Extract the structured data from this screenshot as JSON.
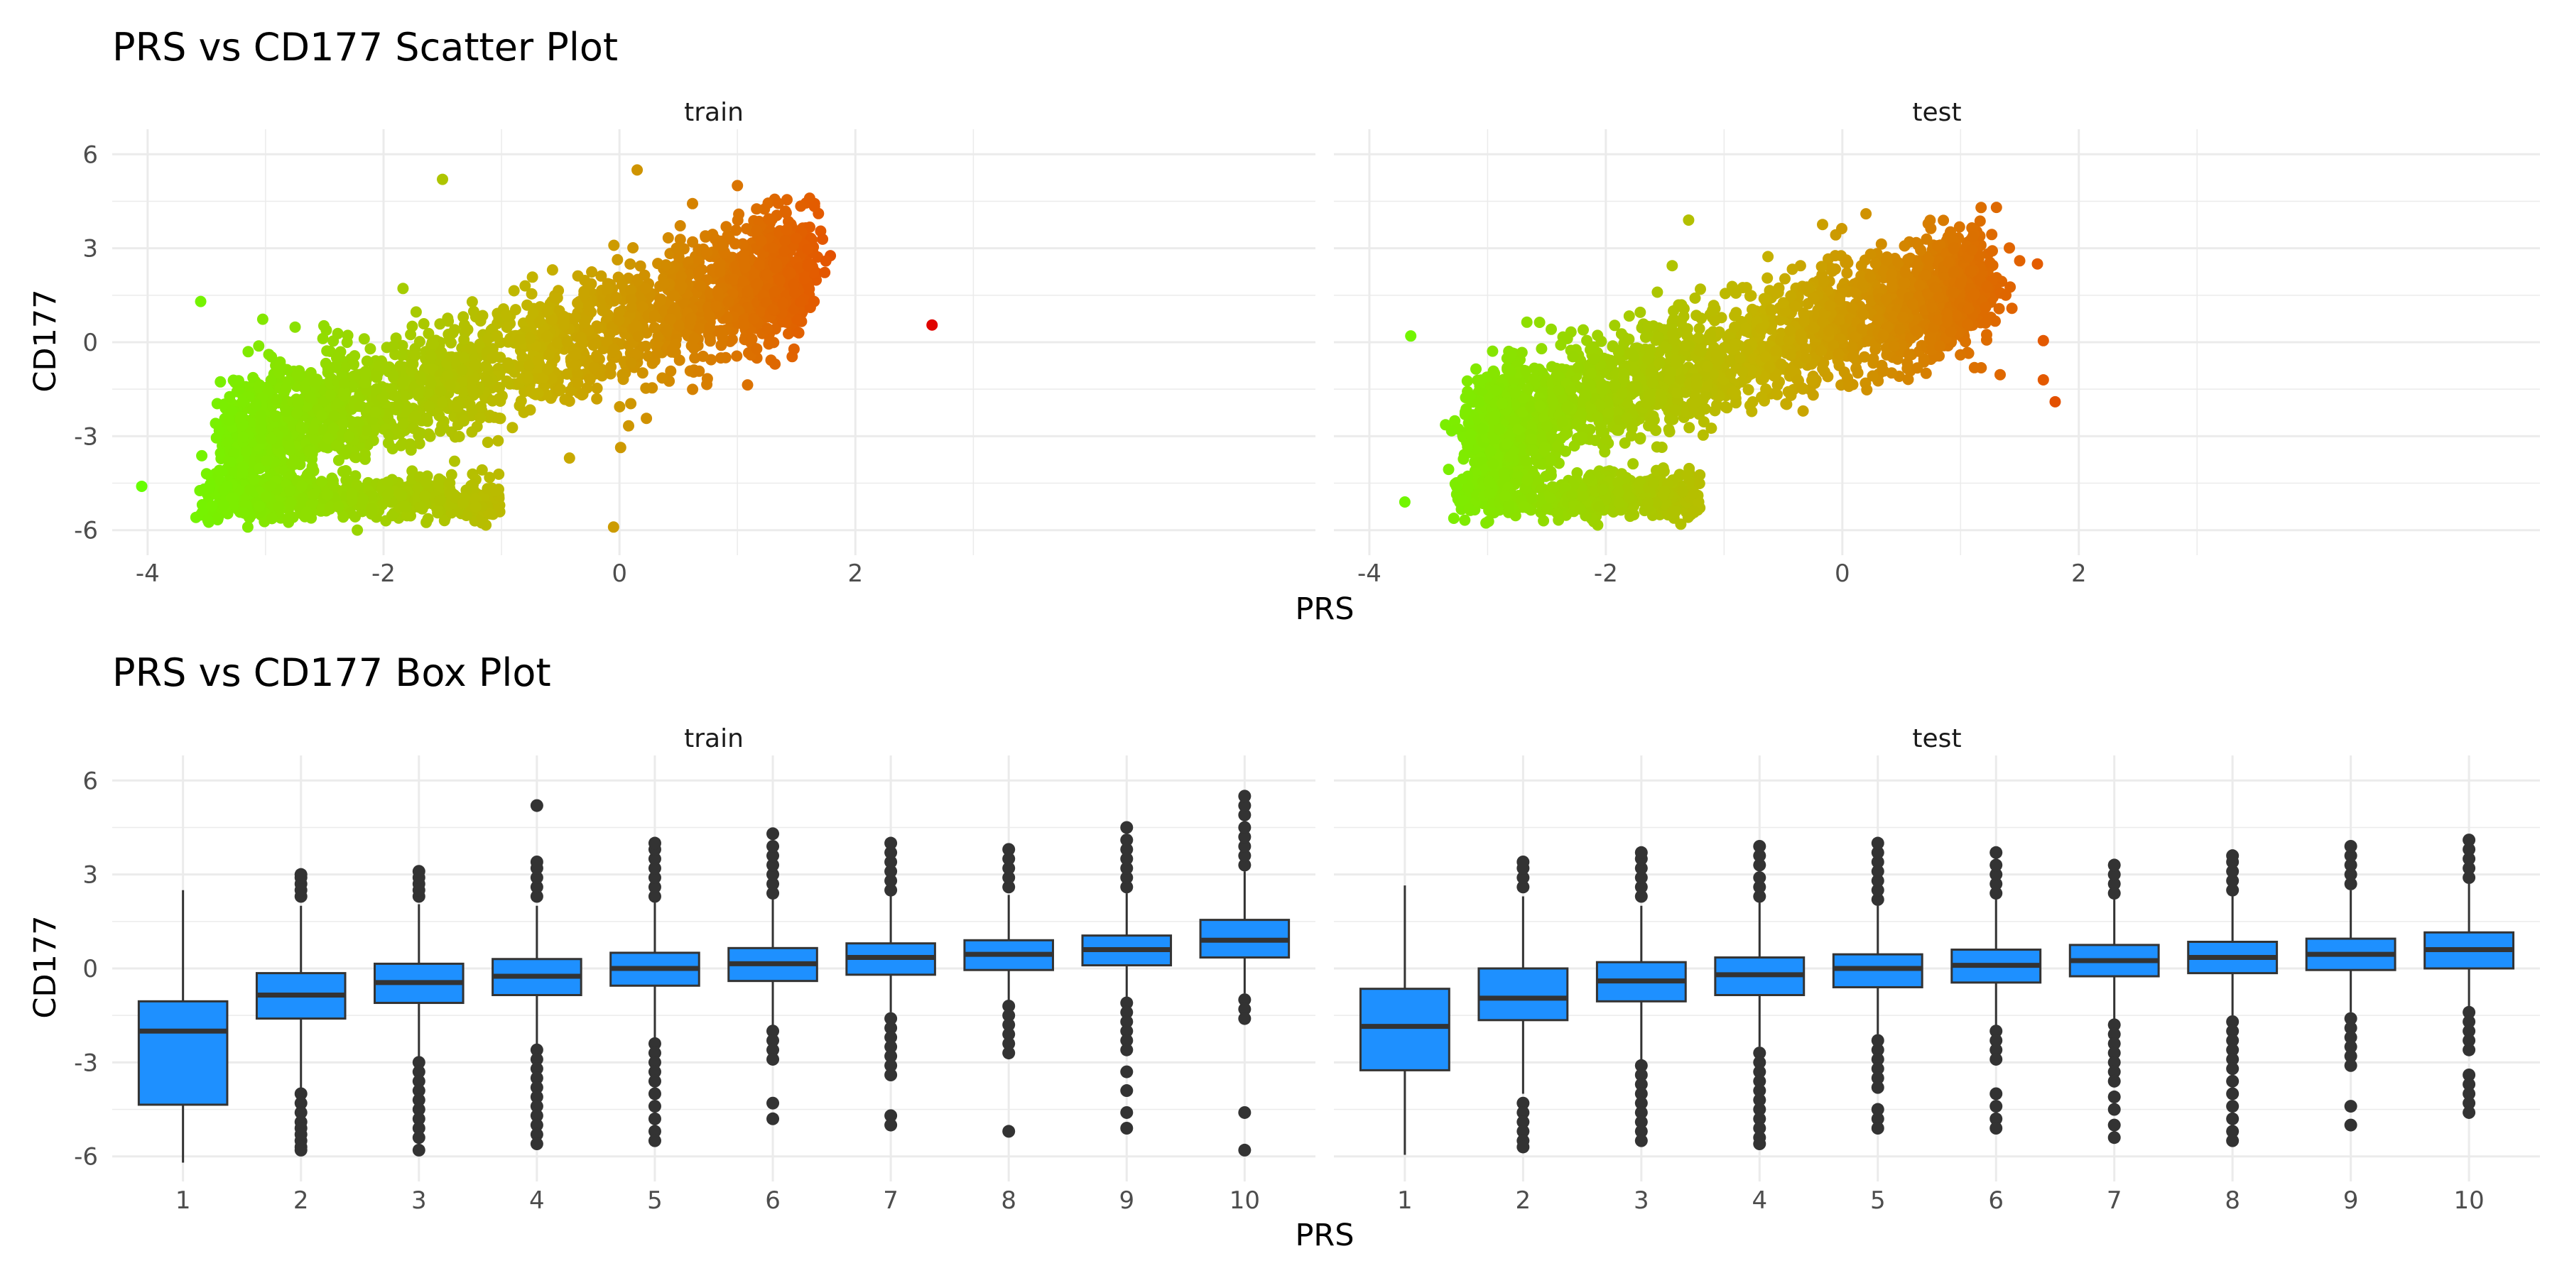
{
  "figure": {
    "scatter_title": "PRS vs CD177 Scatter Plot",
    "box_title": "PRS vs CD177 Box Plot",
    "xlabel": "PRS",
    "ylabel": "CD177",
    "facets": [
      "train",
      "test"
    ]
  },
  "colors": {
    "low": "#66ff00",
    "mid": "#c4b300",
    "high": "#e35b00",
    "extreme": "#e00000",
    "box_fill": "#1e90ff",
    "outline": "#333333",
    "grid": "#ebebeb"
  },
  "chart_data": [
    {
      "type": "scatter",
      "title": "PRS vs CD177 Scatter Plot",
      "xlabel": "PRS",
      "ylabel": "CD177",
      "color_scale": "gradient by PRS, green (low) to orange/red (high)",
      "legend": "none",
      "grid": true,
      "panels": [
        {
          "facet": "train",
          "xlim": [
            -4.3,
            5.9
          ],
          "ylim": [
            -6.8,
            6.8
          ],
          "x_ticks": [
            -4,
            -2,
            0,
            2
          ],
          "y_ticks": [
            -6,
            -3,
            0,
            3,
            6
          ],
          "main_cloud": {
            "x_range": [
              -3.2,
              1.5
            ],
            "y_at_x_min": -3.2,
            "y_at_x_max": 2.3,
            "spread_sd": 1.0
          },
          "lower_cluster": {
            "x_range": [
              -3.6,
              -1.0
            ],
            "y_center": -5.0,
            "spread_sd": 0.35
          },
          "notable_points": [
            {
              "x": -4.05,
              "y": -4.6
            },
            {
              "x": -3.55,
              "y": 1.3
            },
            {
              "x": -1.5,
              "y": 5.2
            },
            {
              "x": 0.15,
              "y": 5.5
            },
            {
              "x": 1.0,
              "y": 5.0
            },
            {
              "x": -0.05,
              "y": -5.9
            },
            {
              "x": 1.45,
              "y": 2.2
            },
            {
              "x": 1.65,
              "y": 1.3
            },
            {
              "x": 2.65,
              "y": 0.55
            }
          ]
        },
        {
          "facet": "test",
          "xlim": [
            -4.3,
            5.9
          ],
          "ylim": [
            -6.8,
            6.8
          ],
          "x_ticks": [
            -4,
            -2,
            0,
            2
          ],
          "y_ticks": [
            -6,
            -3,
            0,
            3,
            6
          ],
          "main_cloud": {
            "x_range": [
              -3.0,
              1.1
            ],
            "y_at_x_min": -2.7,
            "y_at_x_max": 1.8,
            "spread_sd": 0.95
          },
          "lower_cluster": {
            "x_range": [
              -3.3,
              -1.2
            ],
            "y_center": -4.9,
            "spread_sd": 0.35
          },
          "notable_points": [
            {
              "x": -3.65,
              "y": 0.2
            },
            {
              "x": -3.7,
              "y": -5.1
            },
            {
              "x": -1.3,
              "y": 3.9
            },
            {
              "x": 0.2,
              "y": 4.1
            },
            {
              "x": 1.5,
              "y": 2.6
            },
            {
              "x": 1.65,
              "y": 2.5
            },
            {
              "x": 1.7,
              "y": 0.05
            },
            {
              "x": 1.7,
              "y": -1.2
            },
            {
              "x": 1.8,
              "y": -1.9
            }
          ]
        }
      ]
    },
    {
      "type": "box",
      "title": "PRS vs CD177 Box Plot",
      "xlabel": "PRS",
      "ylabel": "CD177",
      "categories": [
        "1",
        "2",
        "3",
        "4",
        "5",
        "6",
        "7",
        "8",
        "9",
        "10"
      ],
      "ylim": [
        -6.8,
        6.8
      ],
      "y_ticks": [
        -6,
        -3,
        0,
        3,
        6
      ],
      "legend": "none",
      "grid": true,
      "panels": [
        {
          "facet": "train",
          "boxes": [
            {
              "min": -6.2,
              "q1": -4.35,
              "median": -2.0,
              "q3": -1.05,
              "max": 2.5,
              "outliers": []
            },
            {
              "min": -3.9,
              "q1": -1.6,
              "median": -0.85,
              "q3": -0.15,
              "max": 2.0,
              "outliers": [
                2.3,
                2.5,
                2.7,
                2.9,
                3.0,
                -4.0,
                -4.3,
                -4.6,
                -4.9,
                -5.1,
                -5.3,
                -5.5,
                -5.7,
                -5.8
              ]
            },
            {
              "min": -2.9,
              "q1": -1.1,
              "median": -0.45,
              "q3": 0.15,
              "max": 2.05,
              "outliers": [
                2.3,
                2.5,
                2.7,
                2.9,
                3.1,
                -3.0,
                -3.3,
                -3.6,
                -3.9,
                -4.2,
                -4.5,
                -4.8,
                -5.1,
                -5.4,
                -5.8
              ]
            },
            {
              "min": -2.5,
              "q1": -0.85,
              "median": -0.25,
              "q3": 0.3,
              "max": 2.0,
              "outliers": [
                2.3,
                2.6,
                2.9,
                3.2,
                3.4,
                5.2,
                -2.6,
                -2.9,
                -3.2,
                -3.5,
                -3.8,
                -4.1,
                -4.4,
                -4.7,
                -5.0,
                -5.3,
                -5.6
              ]
            },
            {
              "min": -2.2,
              "q1": -0.55,
              "median": 0.0,
              "q3": 0.5,
              "max": 2.1,
              "outliers": [
                2.3,
                2.6,
                2.9,
                3.2,
                3.5,
                3.8,
                4.0,
                -2.4,
                -2.7,
                -3.0,
                -3.3,
                -3.6,
                -4.0,
                -4.4,
                -4.8,
                -5.2,
                -5.5
              ]
            },
            {
              "min": -1.9,
              "q1": -0.4,
              "median": 0.15,
              "q3": 0.65,
              "max": 2.2,
              "outliers": [
                2.4,
                2.7,
                3.0,
                3.3,
                3.6,
                3.9,
                4.3,
                -2.0,
                -2.3,
                -2.6,
                -2.9,
                -4.3,
                -4.8
              ]
            },
            {
              "min": -1.4,
              "q1": -0.2,
              "median": 0.35,
              "q3": 0.8,
              "max": 2.3,
              "outliers": [
                2.5,
                2.8,
                3.1,
                3.4,
                3.7,
                4.0,
                -1.6,
                -1.9,
                -2.2,
                -2.5,
                -2.8,
                -3.1,
                -3.4,
                -4.7,
                -5.0
              ]
            },
            {
              "min": -1.0,
              "q1": -0.05,
              "median": 0.45,
              "q3": 0.9,
              "max": 2.35,
              "outliers": [
                2.6,
                2.9,
                3.2,
                3.5,
                3.8,
                -1.2,
                -1.5,
                -1.8,
                -2.1,
                -2.4,
                -2.7,
                -5.2
              ]
            },
            {
              "min": -0.9,
              "q1": 0.1,
              "median": 0.6,
              "q3": 1.05,
              "max": 2.4,
              "outliers": [
                2.6,
                2.9,
                3.2,
                3.5,
                3.8,
                4.1,
                4.5,
                -1.1,
                -1.4,
                -1.7,
                -2.0,
                -2.3,
                -2.6,
                -3.3,
                -3.9,
                -4.6,
                -5.1
              ]
            },
            {
              "min": -0.8,
              "q1": 0.35,
              "median": 0.9,
              "q3": 1.55,
              "max": 3.1,
              "outliers": [
                3.3,
                3.6,
                3.9,
                4.2,
                4.5,
                4.9,
                5.2,
                5.5,
                -1.0,
                -1.3,
                -1.6,
                -4.6,
                -5.8
              ]
            }
          ]
        },
        {
          "facet": "test",
          "boxes": [
            {
              "min": -5.95,
              "q1": -3.25,
              "median": -1.85,
              "q3": -0.65,
              "max": 2.65,
              "outliers": []
            },
            {
              "min": -4.0,
              "q1": -1.65,
              "median": -0.95,
              "q3": 0.0,
              "max": 2.3,
              "outliers": [
                2.6,
                2.9,
                3.2,
                3.4,
                -4.3,
                -4.6,
                -4.9,
                -5.2,
                -5.5,
                -5.7
              ]
            },
            {
              "min": -2.9,
              "q1": -1.05,
              "median": -0.4,
              "q3": 0.2,
              "max": 2.0,
              "outliers": [
                2.3,
                2.6,
                2.9,
                3.2,
                3.5,
                3.7,
                -3.1,
                -3.4,
                -3.7,
                -4.0,
                -4.3,
                -4.6,
                -4.9,
                -5.2,
                -5.5
              ]
            },
            {
              "min": -2.5,
              "q1": -0.85,
              "median": -0.2,
              "q3": 0.35,
              "max": 2.1,
              "outliers": [
                2.3,
                2.6,
                2.9,
                3.3,
                3.6,
                3.9,
                -2.7,
                -3.0,
                -3.3,
                -3.6,
                -3.9,
                -4.2,
                -4.5,
                -4.8,
                -5.1,
                -5.4,
                -5.6
              ]
            },
            {
              "min": -2.1,
              "q1": -0.6,
              "median": 0.0,
              "q3": 0.45,
              "max": 2.0,
              "outliers": [
                2.2,
                2.5,
                2.8,
                3.1,
                3.4,
                3.7,
                4.0,
                -2.3,
                -2.6,
                -2.9,
                -3.2,
                -3.5,
                -3.8,
                -4.5,
                -4.8,
                -5.1
              ]
            },
            {
              "min": -1.9,
              "q1": -0.45,
              "median": 0.1,
              "q3": 0.6,
              "max": 2.2,
              "outliers": [
                2.4,
                2.7,
                3.0,
                3.3,
                3.7,
                -2.0,
                -2.3,
                -2.6,
                -2.9,
                -4.0,
                -4.4,
                -4.8,
                -5.1
              ]
            },
            {
              "min": -1.6,
              "q1": -0.25,
              "median": 0.25,
              "q3": 0.75,
              "max": 2.2,
              "outliers": [
                2.4,
                2.7,
                3.0,
                3.3,
                -1.8,
                -2.1,
                -2.4,
                -2.7,
                -3.0,
                -3.3,
                -3.6,
                -4.1,
                -4.5,
                -5.0,
                -5.4
              ]
            },
            {
              "min": -1.5,
              "q1": -0.15,
              "median": 0.35,
              "q3": 0.85,
              "max": 2.3,
              "outliers": [
                2.5,
                2.8,
                3.1,
                3.4,
                3.6,
                -1.7,
                -2.0,
                -2.3,
                -2.6,
                -2.9,
                -3.2,
                -3.6,
                -4.0,
                -4.4,
                -4.8,
                -5.2,
                -5.5
              ]
            },
            {
              "min": -1.4,
              "q1": -0.05,
              "median": 0.45,
              "q3": 0.95,
              "max": 2.5,
              "outliers": [
                2.7,
                3.0,
                3.3,
                3.6,
                3.9,
                -1.6,
                -1.9,
                -2.2,
                -2.5,
                -2.8,
                -3.1,
                -4.4,
                -5.0
              ]
            },
            {
              "min": -1.2,
              "q1": 0.0,
              "median": 0.6,
              "q3": 1.15,
              "max": 2.7,
              "outliers": [
                2.9,
                3.2,
                3.5,
                3.8,
                4.1,
                -1.4,
                -1.7,
                -2.0,
                -2.3,
                -2.6,
                -3.4,
                -3.7,
                -4.0,
                -4.3,
                -4.6
              ]
            }
          ]
        }
      ]
    }
  ]
}
